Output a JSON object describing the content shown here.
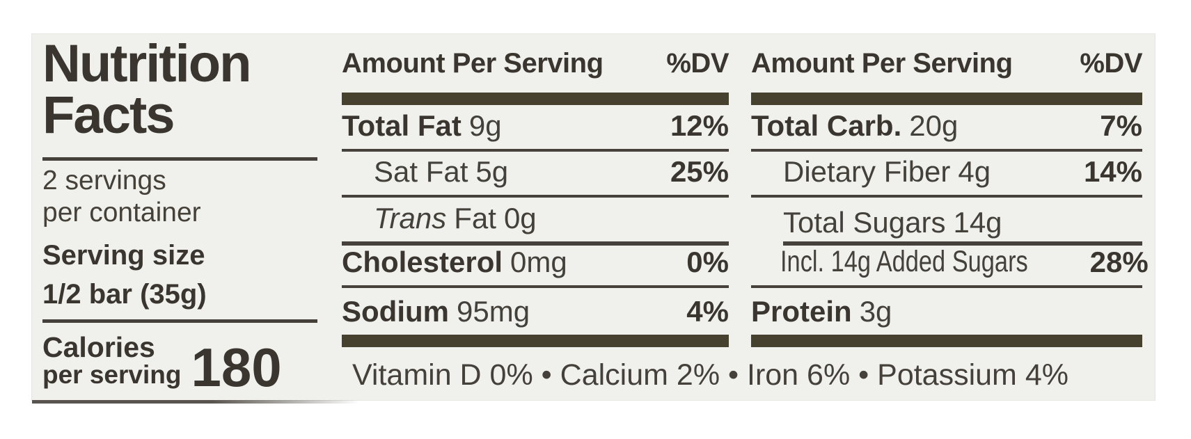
{
  "nutrition_label": {
    "title": {
      "line1": "Nutrition",
      "line2": "Facts"
    },
    "servings": {
      "line1": "2 servings",
      "line2": "per container"
    },
    "serving_size": {
      "label": "Serving size",
      "value": "1/2 bar (35g)"
    },
    "calories": {
      "label": "Calories",
      "sublabel": "per serving",
      "value": "180"
    },
    "fat_column": {
      "header": {
        "amount": "Amount Per Serving",
        "dv": "%DV"
      },
      "rows": {
        "total_fat": {
          "name": "Total Fat",
          "amount": "9g",
          "dv": "12%"
        },
        "sat_fat": {
          "name": "Sat Fat",
          "amount": "5g",
          "dv": "25%"
        },
        "trans_fat": {
          "name_italic": "Trans",
          "name": "Fat",
          "amount": "0g"
        },
        "cholesterol": {
          "name": "Cholesterol",
          "amount": "0mg",
          "dv": "0%"
        },
        "sodium": {
          "name": "Sodium",
          "amount": "95mg",
          "dv": "4%"
        }
      }
    },
    "carb_column": {
      "header": {
        "amount": "Amount Per Serving",
        "dv": "%DV"
      },
      "rows": {
        "total_carb": {
          "name": "Total Carb.",
          "amount": "20g",
          "dv": "7%"
        },
        "dietary_fiber": {
          "name": "Dietary Fiber",
          "amount": "4g",
          "dv": "14%"
        },
        "total_sugars": {
          "name": "Total Sugars",
          "amount": "14g"
        },
        "added_sugars": {
          "name": "Incl. 14g Added Sugars",
          "dv": "28%"
        },
        "protein": {
          "name": "Protein",
          "amount": "3g"
        }
      }
    },
    "micronutrients": "Vitamin D 0% • Calcium 2% • Iron 6% • Potassium 4%",
    "colors": {
      "label_background": "#f0f1ed",
      "ink": "#3d3933",
      "bar": "#46402f"
    }
  }
}
